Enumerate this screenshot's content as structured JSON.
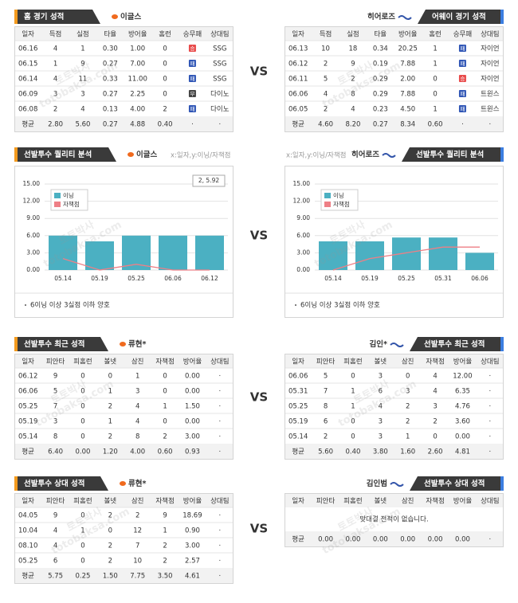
{
  "watermark": [
    "토토박사",
    "totobaksa.com"
  ],
  "vs": "VS",
  "sections": [
    {
      "panels": [
        {
          "title": "홈 경기 성적",
          "team": "이글스",
          "columns": [
            "일자",
            "득점",
            "실점",
            "타율",
            "방어율",
            "홈런",
            "승무패",
            "상대팀"
          ],
          "rows": [
            [
              "06.16",
              "4",
              "1",
              "0.30",
              "1.00",
              "0",
              "승",
              "SSG"
            ],
            [
              "06.15",
              "1",
              "9",
              "0.27",
              "7.00",
              "0",
              "패",
              "SSG"
            ],
            [
              "06.14",
              "4",
              "11",
              "0.33",
              "11.00",
              "0",
              "패",
              "SSG"
            ],
            [
              "06.09",
              "3",
              "3",
              "0.27",
              "2.25",
              "0",
              "무",
              "다이노"
            ],
            [
              "06.08",
              "2",
              "4",
              "0.13",
              "4.00",
              "2",
              "패",
              "다이노"
            ]
          ],
          "average": [
            "평균",
            "2.80",
            "5.60",
            "0.27",
            "4.88",
            "0.40",
            "·",
            "·"
          ]
        },
        {
          "title": "어웨이 경기 성적",
          "team": "히어로즈",
          "columns": [
            "일자",
            "득점",
            "실점",
            "타율",
            "방어율",
            "홈런",
            "승무패",
            "상대팀"
          ],
          "rows": [
            [
              "06.13",
              "10",
              "18",
              "0.34",
              "20.25",
              "1",
              "패",
              "자이언"
            ],
            [
              "06.12",
              "2",
              "9",
              "0.19",
              "7.88",
              "1",
              "패",
              "자이언"
            ],
            [
              "06.11",
              "5",
              "2",
              "0.29",
              "2.00",
              "0",
              "승",
              "자이언"
            ],
            [
              "06.06",
              "4",
              "8",
              "0.29",
              "7.88",
              "0",
              "패",
              "트윈스"
            ],
            [
              "06.05",
              "2",
              "4",
              "0.23",
              "4.50",
              "1",
              "패",
              "트윈스"
            ]
          ],
          "average": [
            "평균",
            "4.60",
            "8.20",
            "0.27",
            "8.34",
            "0.60",
            "·",
            "·"
          ]
        }
      ]
    },
    {
      "panels": [
        {
          "chart_data": {
            "type": "bar",
            "title": "선발투수 퀄리티 분석",
            "team": "이글스",
            "axis_note": "x:일자,y:이닝/자책점",
            "categories": [
              "05.14",
              "05.19",
              "05.25",
              "06.06",
              "06.12"
            ],
            "ylim": [
              0,
              15
            ],
            "yticks": [
              {
                "value": 0,
                "label": "0.00"
              },
              {
                "value": 3,
                "label": "3.00"
              },
              {
                "value": 6,
                "label": "6.00"
              },
              {
                "value": 9,
                "label": "9.00"
              },
              {
                "value": 12,
                "label": "12.00"
              },
              {
                "value": 15,
                "label": "15.00"
              }
            ],
            "grid": true,
            "series": [
              {
                "name": "이닝",
                "color": "#4bb0c2",
                "values": [
                  6,
                  5,
                  6,
                  6,
                  6
                ]
              },
              {
                "name": "자책점",
                "color": "#ee7f86",
                "values": [
                  2,
                  0,
                  1,
                  0,
                  0
                ]
              }
            ],
            "annotation": "2, 5.92",
            "note": "6이닝 이상 3실점 이하 양호"
          }
        },
        {
          "chart_data": {
            "type": "bar",
            "title": "선발투수 퀄리티 분석",
            "team": "히어로즈",
            "axis_note": "x:일자,y:이닝/자책점",
            "categories": [
              "05.14",
              "05.19",
              "05.25",
              "05.31",
              "06.06"
            ],
            "ylim": [
              0,
              15
            ],
            "yticks": [
              {
                "value": 0,
                "label": "0.00"
              },
              {
                "value": 3,
                "label": "3.00"
              },
              {
                "value": 6,
                "label": "6.00"
              },
              {
                "value": 9,
                "label": "9.00"
              },
              {
                "value": 12,
                "label": "12.00"
              },
              {
                "value": 15,
                "label": "15.00"
              }
            ],
            "grid": true,
            "series": [
              {
                "name": "이닝",
                "color": "#4bb0c2",
                "values": [
                  5,
                  5,
                  5.67,
                  5.67,
                  3
                ]
              },
              {
                "name": "자책점",
                "color": "#ee7f86",
                "values": [
                  0,
                  2,
                  3,
                  4,
                  4
                ]
              }
            ],
            "note": "6이닝 이상 3실점 이하 양호"
          }
        }
      ]
    },
    {
      "panels": [
        {
          "title": "선발투수 최근 성적",
          "team": "류현*",
          "columns": [
            "일자",
            "피안타",
            "피홈런",
            "볼넷",
            "삼진",
            "자책점",
            "방어율",
            "상대팀"
          ],
          "rows": [
            [
              "06.12",
              "9",
              "0",
              "0",
              "1",
              "0",
              "0.00",
              "·"
            ],
            [
              "06.06",
              "5",
              "0",
              "1",
              "3",
              "0",
              "0.00",
              "·"
            ],
            [
              "05.25",
              "7",
              "0",
              "2",
              "4",
              "1",
              "1.50",
              "·"
            ],
            [
              "05.19",
              "3",
              "0",
              "1",
              "4",
              "0",
              "0.00",
              "·"
            ],
            [
              "05.14",
              "8",
              "0",
              "2",
              "8",
              "2",
              "3.00",
              "·"
            ]
          ],
          "average": [
            "평균",
            "6.40",
            "0.00",
            "1.20",
            "4.00",
            "0.60",
            "0.93",
            "·"
          ]
        },
        {
          "title": "선발투수 최근 성적",
          "team": "김인*",
          "columns": [
            "일자",
            "피안타",
            "피홈런",
            "볼넷",
            "삼진",
            "자책점",
            "방어율",
            "상대팀"
          ],
          "rows": [
            [
              "06.06",
              "5",
              "0",
              "3",
              "0",
              "4",
              "12.00",
              "·"
            ],
            [
              "05.31",
              "7",
              "1",
              "6",
              "3",
              "4",
              "6.35",
              "·"
            ],
            [
              "05.25",
              "8",
              "1",
              "4",
              "2",
              "3",
              "4.76",
              "·"
            ],
            [
              "05.19",
              "6",
              "0",
              "3",
              "2",
              "2",
              "3.60",
              "·"
            ],
            [
              "05.14",
              "2",
              "0",
              "3",
              "1",
              "0",
              "0.00",
              "·"
            ]
          ],
          "average": [
            "평균",
            "5.60",
            "0.40",
            "3.80",
            "1.60",
            "2.60",
            "4.81",
            "·"
          ]
        }
      ]
    },
    {
      "panels": [
        {
          "title": "선발투수 상대 성적",
          "team": "류현*",
          "columns": [
            "일자",
            "피안타",
            "피홈런",
            "볼넷",
            "삼진",
            "자책점",
            "방어율",
            "상대팀"
          ],
          "rows": [
            [
              "04.05",
              "9",
              "0",
              "2",
              "2",
              "9",
              "18.69",
              "·"
            ],
            [
              "10.04",
              "4",
              "1",
              "0",
              "12",
              "1",
              "0.90",
              "·"
            ],
            [
              "08.10",
              "4",
              "0",
              "2",
              "7",
              "2",
              "3.00",
              "·"
            ],
            [
              "05.25",
              "6",
              "0",
              "2",
              "10",
              "2",
              "2.57",
              "·"
            ]
          ],
          "average": [
            "평균",
            "5.75",
            "0.25",
            "1.50",
            "7.75",
            "3.50",
            "4.61",
            "·"
          ]
        },
        {
          "title": "선발투수 상대 성적",
          "team": "김인범",
          "columns": [
            "일자",
            "피안타",
            "피홈런",
            "볼넷",
            "삼진",
            "자책점",
            "방어율",
            "상대팀"
          ],
          "rows": [],
          "message": "맞대결 전적이 없습니다.",
          "average": [
            "평균",
            "0.00",
            "0.00",
            "0.00",
            "0.00",
            "0.00",
            "0.00",
            "·"
          ]
        }
      ]
    }
  ],
  "result_colors": {
    "승": "#e84a4a",
    "패": "#2f55b5",
    "무": "#444444"
  }
}
